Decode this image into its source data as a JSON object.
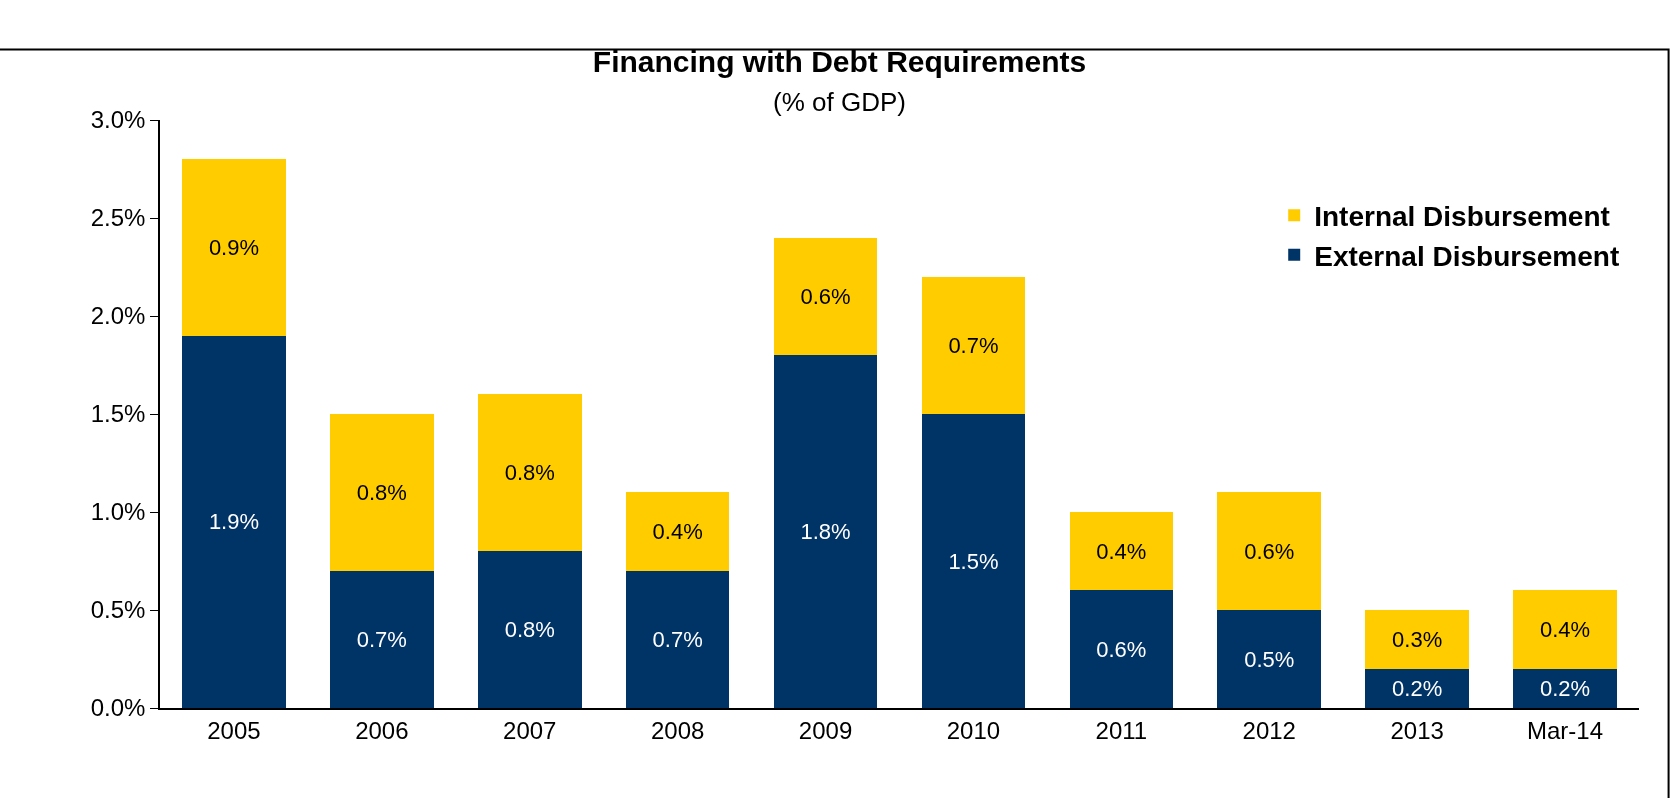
{
  "chart_data": {
    "type": "bar",
    "title": "Financing with Debt Requirements",
    "subtitle": "(% of GDP)",
    "categories": [
      "2005",
      "2006",
      "2007",
      "2008",
      "2009",
      "2010",
      "2011",
      "2012",
      "2013",
      "Mar-14"
    ],
    "stacked": true,
    "series": [
      {
        "name": "External Disbursement",
        "color": "#003366",
        "values": [
          1.9,
          0.7,
          0.8,
          0.7,
          1.8,
          1.5,
          0.6,
          0.5,
          0.2,
          0.2
        ],
        "value_labels": [
          "1.9%",
          "0.7%",
          "0.8%",
          "0.7%",
          "1.8%",
          "1.5%",
          "0.6%",
          "0.5%",
          "0.2%",
          "0.2%"
        ]
      },
      {
        "name": "Internal Disbursement",
        "color": "#ffcc00",
        "values": [
          0.9,
          0.8,
          0.8,
          0.4,
          0.6,
          0.7,
          0.4,
          0.6,
          0.3,
          0.4
        ],
        "value_labels": [
          "0.9%",
          "0.8%",
          "0.8%",
          "0.4%",
          "0.6%",
          "0.7%",
          "0.4%",
          "0.6%",
          "0.3%",
          "0.4%"
        ]
      }
    ],
    "ylim": [
      0,
      3.0
    ],
    "yticks": [
      {
        "value": 0,
        "label": "0.0%"
      },
      {
        "value": 0.5,
        "label": "0.5%"
      },
      {
        "value": 1.0,
        "label": "1.0%"
      },
      {
        "value": 1.5,
        "label": "1.5%"
      },
      {
        "value": 2.0,
        "label": "2.0%"
      },
      {
        "value": 2.5,
        "label": "2.5%"
      },
      {
        "value": 3.0,
        "label": "3.0%"
      }
    ],
    "grid": false,
    "legend": "top right"
  }
}
